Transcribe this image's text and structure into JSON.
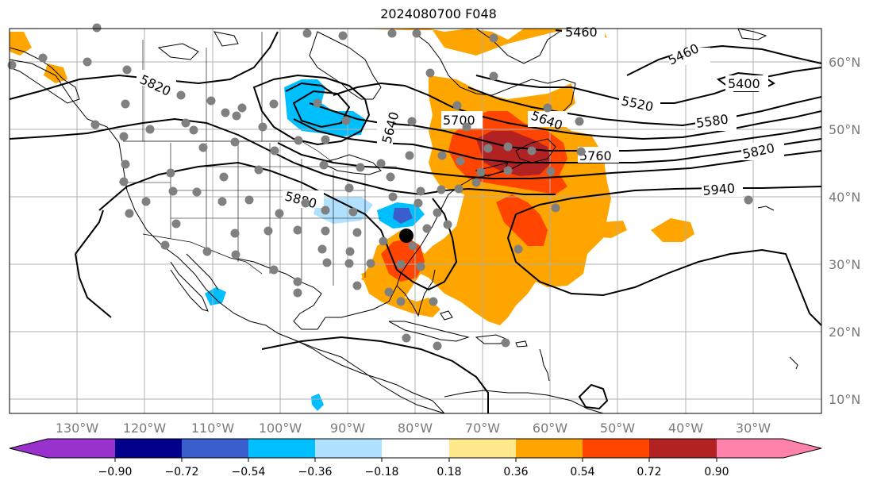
{
  "title": "2024080700 F048",
  "lat_labels": [
    "60°N",
    "50°N",
    "40°N",
    "30°N",
    "20°N",
    "10°N"
  ],
  "lon_labels": [
    "130°W",
    "120°W",
    "110°W",
    "100°W",
    "90°W",
    "80°W",
    "70°W",
    "60°W",
    "50°W",
    "40°W",
    "30°W"
  ],
  "contour_labels": [
    "5820",
    "5640",
    "5700",
    "5640",
    "5460",
    "5400",
    "5520",
    "5580",
    "5760",
    "5820",
    "5940",
    "5880",
    "5460"
  ],
  "colorbar": {
    "ticks": [
      "−0.90",
      "−0.72",
      "−0.54",
      "−0.36",
      "−0.18",
      "0.18",
      "0.36",
      "0.54",
      "0.72",
      "0.90"
    ],
    "colors": [
      "#9932cc",
      "#00008b",
      "#3a5fcd",
      "#00bfff",
      "#b0e2ff",
      "#ffffff",
      "#ffe98c",
      "#ffa500",
      "#ff4500",
      "#b22222",
      "#ff82ab"
    ]
  },
  "colors": {
    "orange": "#ffa500",
    "red": "#ff4500",
    "dark_red": "#b22222",
    "light_blue": "#b0e2ff",
    "sky_blue": "#00bfff",
    "royal_blue": "#3a5fcd",
    "station_gray": "#808080",
    "grid_gray": "#b0b0b0"
  }
}
